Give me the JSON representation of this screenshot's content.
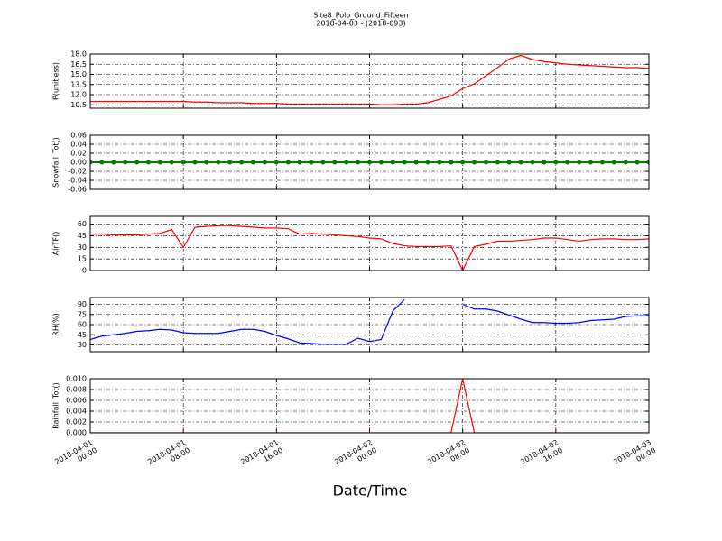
{
  "chart_data": [
    {
      "type": "line",
      "title": "Site8_Polo_Ground_Fifteen",
      "subtitle": "2018-04-03 - (2018-093)",
      "ylabel": "P(unitless)",
      "color": "#ff0000",
      "grid": true,
      "x": [
        "2018-04-01 00:00",
        "2018-04-01 01:00",
        "2018-04-01 02:00",
        "2018-04-01 03:00",
        "2018-04-01 04:00",
        "2018-04-01 05:00",
        "2018-04-01 06:00",
        "2018-04-01 07:00",
        "2018-04-01 08:00",
        "2018-04-01 09:00",
        "2018-04-01 10:00",
        "2018-04-01 11:00",
        "2018-04-01 12:00",
        "2018-04-01 13:00",
        "2018-04-01 14:00",
        "2018-04-01 15:00",
        "2018-04-01 16:00",
        "2018-04-01 17:00",
        "2018-04-01 18:00",
        "2018-04-01 19:00",
        "2018-04-01 20:00",
        "2018-04-01 21:00",
        "2018-04-01 22:00",
        "2018-04-01 23:00",
        "2018-04-02 00:00",
        "2018-04-02 01:00",
        "2018-04-02 02:00",
        "2018-04-02 03:00",
        "2018-04-02 04:00",
        "2018-04-02 05:00",
        "2018-04-02 06:00",
        "2018-04-02 07:00",
        "2018-04-02 08:00",
        "2018-04-02 09:00",
        "2018-04-02 10:00",
        "2018-04-02 11:00",
        "2018-04-02 12:00",
        "2018-04-02 13:00",
        "2018-04-02 14:00",
        "2018-04-02 15:00",
        "2018-04-02 16:00",
        "2018-04-02 17:00",
        "2018-04-02 18:00",
        "2018-04-02 19:00",
        "2018-04-02 20:00",
        "2018-04-02 21:00",
        "2018-04-02 22:00",
        "2018-04-02 23:00",
        "2018-04-03 00:00"
      ],
      "values": [
        11.0,
        11.0,
        11.0,
        11.0,
        11.0,
        11.0,
        11.0,
        11.0,
        11.0,
        10.9,
        10.9,
        10.8,
        10.8,
        10.8,
        10.7,
        10.7,
        10.7,
        10.6,
        10.6,
        10.6,
        10.6,
        10.6,
        10.6,
        10.6,
        10.6,
        10.5,
        10.5,
        10.6,
        10.6,
        10.8,
        11.3,
        11.8,
        12.9,
        13.6,
        14.8,
        16.0,
        17.3,
        17.8,
        17.2,
        16.9,
        16.7,
        16.5,
        16.4,
        16.3,
        16.2,
        16.1,
        16.0,
        16.0,
        15.9
      ],
      "xlim": [
        "2018-04-01 00:00",
        "2018-04-03 00:00"
      ],
      "ylim": [
        10,
        18
      ],
      "yticks": [
        {
          "value": 10.5,
          "label": "10.5"
        },
        {
          "value": 12,
          "label": "12.0"
        },
        {
          "value": 13.5,
          "label": "13.5"
        },
        {
          "value": 15,
          "label": "15.0"
        },
        {
          "value": 16.5,
          "label": "16.5"
        },
        {
          "value": 18,
          "label": "18.0"
        }
      ]
    },
    {
      "type": "line",
      "ylabel": "Snowfall_Tot()",
      "color": "#008000",
      "markers": true,
      "grid": true,
      "x": [
        "2018-04-01 00:00",
        "2018-04-01 01:00",
        "2018-04-01 02:00",
        "2018-04-01 03:00",
        "2018-04-01 04:00",
        "2018-04-01 05:00",
        "2018-04-01 06:00",
        "2018-04-01 07:00",
        "2018-04-01 08:00",
        "2018-04-01 09:00",
        "2018-04-01 10:00",
        "2018-04-01 11:00",
        "2018-04-01 12:00",
        "2018-04-01 13:00",
        "2018-04-01 14:00",
        "2018-04-01 15:00",
        "2018-04-01 16:00",
        "2018-04-01 17:00",
        "2018-04-01 18:00",
        "2018-04-01 19:00",
        "2018-04-01 20:00",
        "2018-04-01 21:00",
        "2018-04-01 22:00",
        "2018-04-01 23:00",
        "2018-04-02 00:00",
        "2018-04-02 01:00",
        "2018-04-02 02:00",
        "2018-04-02 03:00",
        "2018-04-02 04:00",
        "2018-04-02 05:00",
        "2018-04-02 06:00",
        "2018-04-02 07:00",
        "2018-04-02 08:00",
        "2018-04-02 09:00",
        "2018-04-02 10:00",
        "2018-04-02 11:00",
        "2018-04-02 12:00",
        "2018-04-02 13:00",
        "2018-04-02 14:00",
        "2018-04-02 15:00",
        "2018-04-02 16:00",
        "2018-04-02 17:00",
        "2018-04-02 18:00",
        "2018-04-02 19:00",
        "2018-04-02 20:00",
        "2018-04-02 21:00",
        "2018-04-02 22:00",
        "2018-04-02 23:00",
        "2018-04-03 00:00"
      ],
      "values": [
        0,
        0,
        0,
        0,
        0,
        0,
        0,
        0,
        0,
        0,
        0,
        0,
        0,
        0,
        0,
        0,
        0,
        0,
        0,
        0,
        0,
        0,
        0,
        0,
        0,
        0,
        0,
        0,
        0,
        0,
        0,
        0,
        0,
        0,
        0,
        0,
        0,
        0,
        0,
        0,
        0,
        0,
        0,
        0,
        0,
        0,
        0,
        0,
        0
      ],
      "xlim": [
        "2018-04-01 00:00",
        "2018-04-03 00:00"
      ],
      "ylim": [
        -0.06,
        0.06
      ],
      "yticks": [
        -0.06,
        -0.04,
        -0.02,
        {
          "value": 0,
          "label": "0.00"
        },
        0.02,
        0.04,
        0.06
      ]
    },
    {
      "type": "line",
      "ylabel": "AirTF()",
      "color": "#ff0000",
      "grid": true,
      "x": [
        "2018-04-01 00:00",
        "2018-04-01 01:00",
        "2018-04-01 02:00",
        "2018-04-01 03:00",
        "2018-04-01 04:00",
        "2018-04-01 05:00",
        "2018-04-01 06:00",
        "2018-04-01 07:00",
        "2018-04-01 08:00",
        "2018-04-01 09:00",
        "2018-04-01 10:00",
        "2018-04-01 11:00",
        "2018-04-01 12:00",
        "2018-04-01 13:00",
        "2018-04-01 14:00",
        "2018-04-01 15:00",
        "2018-04-01 16:00",
        "2018-04-01 17:00",
        "2018-04-01 18:00",
        "2018-04-01 19:00",
        "2018-04-01 20:00",
        "2018-04-01 21:00",
        "2018-04-01 22:00",
        "2018-04-01 23:00",
        "2018-04-02 00:00",
        "2018-04-02 01:00",
        "2018-04-02 02:00",
        "2018-04-02 03:00",
        "2018-04-02 04:00",
        "2018-04-02 05:00",
        "2018-04-02 06:00",
        "2018-04-02 07:00",
        "2018-04-02 08:00",
        "2018-04-02 09:00",
        "2018-04-02 10:00",
        "2018-04-02 11:00",
        "2018-04-02 12:00",
        "2018-04-02 13:00",
        "2018-04-02 14:00",
        "2018-04-02 15:00",
        "2018-04-02 16:00",
        "2018-04-02 17:00",
        "2018-04-02 18:00",
        "2018-04-02 19:00",
        "2018-04-02 20:00",
        "2018-04-02 21:00",
        "2018-04-02 22:00",
        "2018-04-02 23:00",
        "2018-04-03 00:00"
      ],
      "values": [
        47,
        47,
        46,
        46,
        46,
        47,
        48,
        53,
        30,
        56,
        57,
        58,
        58,
        57,
        56,
        55,
        55,
        54,
        47,
        48,
        47,
        46,
        45,
        44,
        42,
        41,
        35,
        32,
        31,
        31,
        31,
        32,
        0,
        31,
        34,
        38,
        38,
        39,
        40,
        42,
        42,
        40,
        38,
        40,
        41,
        41,
        40,
        40,
        41
      ],
      "xlim": [
        "2018-04-01 00:00",
        "2018-04-03 00:00"
      ],
      "ylim": [
        0,
        70
      ],
      "yticks": [
        0,
        15,
        30,
        45,
        60
      ]
    },
    {
      "type": "line",
      "ylabel": "RH(%)",
      "color": "#0000ff",
      "grid": true,
      "x": [
        "2018-04-01 00:00",
        "2018-04-01 01:00",
        "2018-04-01 02:00",
        "2018-04-01 03:00",
        "2018-04-01 04:00",
        "2018-04-01 05:00",
        "2018-04-01 06:00",
        "2018-04-01 07:00",
        "2018-04-01 08:00",
        "2018-04-01 09:00",
        "2018-04-01 10:00",
        "2018-04-01 11:00",
        "2018-04-01 12:00",
        "2018-04-01 13:00",
        "2018-04-01 14:00",
        "2018-04-01 15:00",
        "2018-04-01 16:00",
        "2018-04-01 17:00",
        "2018-04-01 18:00",
        "2018-04-01 19:00",
        "2018-04-01 20:00",
        "2018-04-01 21:00",
        "2018-04-01 22:00",
        "2018-04-01 23:00",
        "2018-04-02 00:00",
        "2018-04-02 01:00",
        "2018-04-02 02:00",
        "2018-04-02 03:00",
        "2018-04-02 04:00",
        "2018-04-02 05:00",
        "2018-04-02 06:00",
        "2018-04-02 07:00",
        "2018-04-02 08:00",
        "2018-04-02 09:00",
        "2018-04-02 10:00",
        "2018-04-02 11:00",
        "2018-04-02 12:00",
        "2018-04-02 13:00",
        "2018-04-02 14:00",
        "2018-04-02 15:00",
        "2018-04-02 16:00",
        "2018-04-02 17:00",
        "2018-04-02 18:00",
        "2018-04-02 19:00",
        "2018-04-02 20:00",
        "2018-04-02 21:00",
        "2018-04-02 22:00",
        "2018-04-02 23:00",
        "2018-04-03 00:00"
      ],
      "values": [
        38,
        43,
        45,
        47,
        50,
        51,
        53,
        52,
        48,
        47,
        47,
        47,
        50,
        53,
        53,
        50,
        44,
        39,
        33,
        32,
        31,
        31,
        31,
        40,
        35,
        38,
        80,
        97,
        null,
        null,
        null,
        null,
        90,
        83,
        83,
        80,
        74,
        68,
        63,
        63,
        62,
        62,
        63,
        66,
        67,
        68,
        72,
        73,
        73
      ],
      "xlim": [
        "2018-04-01 00:00",
        "2018-04-03 00:00"
      ],
      "ylim": [
        20,
        100
      ],
      "yticks": [
        30,
        45,
        60,
        75,
        90
      ]
    },
    {
      "type": "line",
      "ylabel": "Rainfall_Tot()",
      "xlabel": "Date/Time",
      "color": "#ff0000",
      "grid": true,
      "x": [
        "2018-04-01 00:00",
        "2018-04-01 01:00",
        "2018-04-01 02:00",
        "2018-04-01 03:00",
        "2018-04-01 04:00",
        "2018-04-01 05:00",
        "2018-04-01 06:00",
        "2018-04-01 07:00",
        "2018-04-01 08:00",
        "2018-04-01 09:00",
        "2018-04-01 10:00",
        "2018-04-01 11:00",
        "2018-04-01 12:00",
        "2018-04-01 13:00",
        "2018-04-01 14:00",
        "2018-04-01 15:00",
        "2018-04-01 16:00",
        "2018-04-01 17:00",
        "2018-04-01 18:00",
        "2018-04-01 19:00",
        "2018-04-01 20:00",
        "2018-04-01 21:00",
        "2018-04-01 22:00",
        "2018-04-01 23:00",
        "2018-04-02 00:00",
        "2018-04-02 01:00",
        "2018-04-02 02:00",
        "2018-04-02 03:00",
        "2018-04-02 04:00",
        "2018-04-02 05:00",
        "2018-04-02 06:00",
        "2018-04-02 07:00",
        "2018-04-02 08:00",
        "2018-04-02 09:00",
        "2018-04-02 10:00",
        "2018-04-02 11:00",
        "2018-04-02 12:00",
        "2018-04-02 13:00",
        "2018-04-02 14:00",
        "2018-04-02 15:00",
        "2018-04-02 16:00",
        "2018-04-02 17:00",
        "2018-04-02 18:00",
        "2018-04-02 19:00",
        "2018-04-02 20:00",
        "2018-04-02 21:00",
        "2018-04-02 22:00",
        "2018-04-02 23:00",
        "2018-04-03 00:00"
      ],
      "values": [
        0,
        0,
        0,
        0,
        0,
        0,
        0,
        0,
        0,
        0,
        0,
        0,
        0,
        0,
        0,
        0,
        0,
        0,
        0,
        0,
        0,
        0,
        0,
        0,
        0,
        0,
        0,
        0,
        0,
        0,
        0,
        0,
        0.01,
        0,
        0,
        0,
        0,
        0,
        0,
        0,
        0,
        0,
        0,
        0,
        0,
        0,
        0,
        0,
        0
      ],
      "xlim": [
        "2018-04-01 00:00",
        "2018-04-03 00:00"
      ],
      "ylim": [
        0,
        0.01
      ],
      "yticks": [
        {
          "value": 0,
          "label": "0.000"
        },
        0.002,
        0.004,
        0.006,
        0.008,
        {
          "value": 0.01,
          "label": "0.010"
        }
      ],
      "xticks": [
        {
          "value": "2018-04-01 00:00",
          "label": "2018-04-01\n00:00"
        },
        {
          "value": "2018-04-01 08:00",
          "label": "2018-04-01\n08:00"
        },
        {
          "value": "2018-04-01 16:00",
          "label": "2018-04-01\n16:00"
        },
        {
          "value": "2018-04-02 00:00",
          "label": "2018-04-02\n00:00"
        },
        {
          "value": "2018-04-02 08:00",
          "label": "2018-04-02\n08:00"
        },
        {
          "value": "2018-04-02 16:00",
          "label": "2018-04-02\n16:00"
        },
        {
          "value": "2018-04-03 00:00",
          "label": "2018-04-03\n00:00"
        }
      ]
    }
  ]
}
